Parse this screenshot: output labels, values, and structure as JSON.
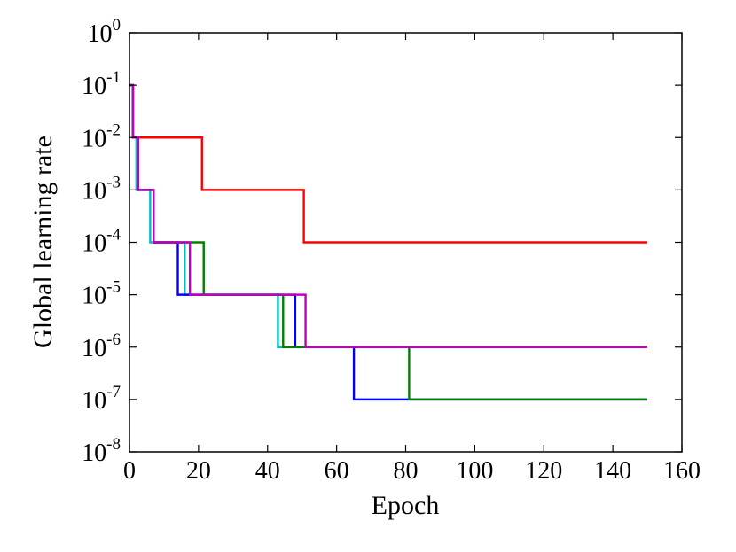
{
  "chart_data": {
    "type": "line",
    "xlabel": "Epoch",
    "ylabel": "Global learning rate",
    "xlim": [
      0,
      160
    ],
    "ylim": [
      1e-08,
      1
    ],
    "y_scale": "log",
    "grid": false,
    "legend": "none",
    "x_ticks": [
      "0",
      "20",
      "40",
      "60",
      "80",
      "100",
      "120",
      "140",
      "160"
    ],
    "y_ticks": [
      {
        "base": "10",
        "exp": "0"
      },
      {
        "base": "10",
        "exp": "-1"
      },
      {
        "base": "10",
        "exp": "-2"
      },
      {
        "base": "10",
        "exp": "-3"
      },
      {
        "base": "10",
        "exp": "-4"
      },
      {
        "base": "10",
        "exp": "-5"
      },
      {
        "base": "10",
        "exp": "-6"
      },
      {
        "base": "10",
        "exp": "-7"
      },
      {
        "base": "10",
        "exp": "-8"
      }
    ],
    "series": [
      {
        "color": "#ff0000",
        "x": [
          0,
          1,
          1,
          21,
          21,
          50.5,
          50.5,
          150
        ],
        "y": [
          0.1,
          0.1,
          0.01,
          0.01,
          0.001,
          0.001,
          0.0001,
          0.0001
        ]
      },
      {
        "color": "#00bfbf",
        "x": [
          0,
          1,
          1,
          2,
          2,
          6,
          6,
          16,
          16,
          43,
          43,
          150
        ],
        "y": [
          0.1,
          0.1,
          0.01,
          0.01,
          0.001,
          0.001,
          0.0001,
          0.0001,
          1e-05,
          1e-05,
          1e-06,
          1e-06
        ]
      },
      {
        "color": "#0000ff",
        "x": [
          0,
          1,
          1,
          2.5,
          2.5,
          7,
          7,
          14,
          14,
          48,
          48,
          65,
          65,
          81,
          81,
          150
        ],
        "y": [
          0.1,
          0.1,
          0.01,
          0.01,
          0.001,
          0.001,
          0.0001,
          0.0001,
          1e-05,
          1e-05,
          1e-06,
          1e-06,
          1e-07,
          1e-07,
          1e-07,
          1e-07
        ]
      },
      {
        "color": "#008000",
        "x": [
          0,
          1,
          1,
          2.5,
          2.5,
          7,
          7,
          21.5,
          21.5,
          44.5,
          44.5,
          81,
          81,
          150
        ],
        "y": [
          0.1,
          0.1,
          0.01,
          0.01,
          0.001,
          0.001,
          0.0001,
          0.0001,
          1e-05,
          1e-05,
          1e-06,
          1e-06,
          1e-07,
          1e-07
        ]
      },
      {
        "color": "#bf00bf",
        "x": [
          0,
          1,
          1,
          2.5,
          2.5,
          7,
          7,
          17.5,
          17.5,
          51,
          51,
          150
        ],
        "y": [
          0.1,
          0.1,
          0.01,
          0.01,
          0.001,
          0.001,
          0.0001,
          0.0001,
          1e-05,
          1e-05,
          1e-06,
          1e-06
        ]
      }
    ]
  }
}
